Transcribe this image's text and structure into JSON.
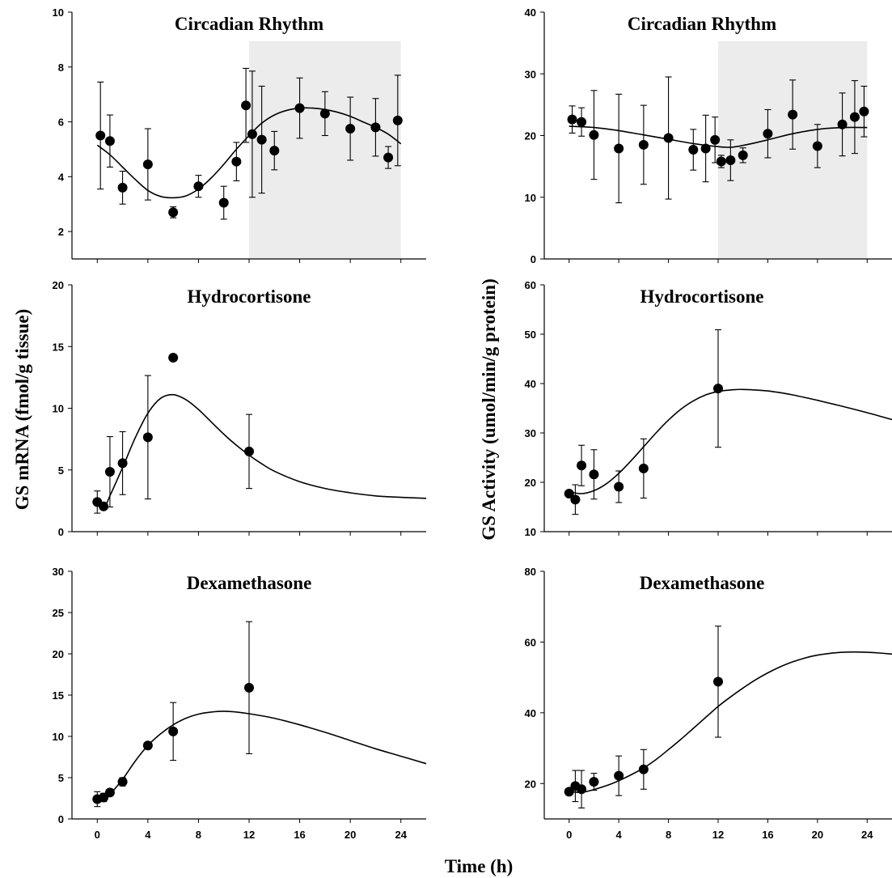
{
  "figure": {
    "ylabel_left": "GS mRNA (fmol/g tissue)",
    "ylabel_right": "GS Activity (umol/min/g protein)",
    "xlabel": "Time (h)",
    "x_ticks": [
      "0",
      "4",
      "8",
      "12",
      "16",
      "20",
      "24"
    ]
  },
  "chart_data": [
    {
      "type": "scatter",
      "title": "Circadian Rhythm",
      "ylim": [
        1,
        10
      ],
      "yticks": [
        2,
        4,
        6,
        8,
        10
      ],
      "xlim": [
        -2,
        26
      ],
      "dark_period": [
        12,
        24
      ],
      "points": [
        {
          "x": 0.25,
          "y": 5.5,
          "err": 1.95
        },
        {
          "x": 1,
          "y": 5.3,
          "err": 0.95
        },
        {
          "x": 2,
          "y": 3.6,
          "err": 0.6
        },
        {
          "x": 4,
          "y": 4.45,
          "err": 1.3
        },
        {
          "x": 6,
          "y": 2.7,
          "err": 0.2
        },
        {
          "x": 8,
          "y": 3.65,
          "err": 0.4
        },
        {
          "x": 10,
          "y": 3.05,
          "err": 0.6
        },
        {
          "x": 11,
          "y": 4.55,
          "err": 0.7
        },
        {
          "x": 11.75,
          "y": 6.6,
          "err": 1.35
        },
        {
          "x": 12.25,
          "y": 5.55,
          "err": 2.3
        },
        {
          "x": 13,
          "y": 5.35,
          "err": 1.95
        },
        {
          "x": 14,
          "y": 4.95,
          "err": 0.7
        },
        {
          "x": 16,
          "y": 6.5,
          "err": 1.1
        },
        {
          "x": 18,
          "y": 6.3,
          "err": 0.8
        },
        {
          "x": 20,
          "y": 5.75,
          "err": 1.15
        },
        {
          "x": 22,
          "y": 5.8,
          "err": 1.05
        },
        {
          "x": 23,
          "y": 4.7,
          "err": 0.4
        },
        {
          "x": 23.75,
          "y": 6.05,
          "err": 1.65
        }
      ],
      "fit": [
        [
          0,
          5.15
        ],
        [
          1,
          4.8
        ],
        [
          2,
          4.35
        ],
        [
          3,
          3.9
        ],
        [
          4,
          3.5
        ],
        [
          5,
          3.28
        ],
        [
          6,
          3.23
        ],
        [
          7,
          3.3
        ],
        [
          8,
          3.55
        ],
        [
          9,
          3.95
        ],
        [
          10,
          4.45
        ],
        [
          11,
          5.0
        ],
        [
          12,
          5.5
        ],
        [
          13,
          5.95
        ],
        [
          14,
          6.25
        ],
        [
          15,
          6.42
        ],
        [
          16,
          6.5
        ],
        [
          17,
          6.5
        ],
        [
          18,
          6.45
        ],
        [
          19,
          6.35
        ],
        [
          20,
          6.2
        ],
        [
          21,
          6.0
        ],
        [
          22,
          5.8
        ],
        [
          23,
          5.55
        ],
        [
          24,
          5.2
        ]
      ]
    },
    {
      "type": "scatter",
      "title": "Circadian Rhythm",
      "ylim": [
        0,
        40
      ],
      "yticks": [
        0,
        10,
        20,
        30,
        40
      ],
      "xlim": [
        -2,
        26
      ],
      "dark_period": [
        12,
        24
      ],
      "points": [
        {
          "x": 0.25,
          "y": 22.6,
          "err": 2.2
        },
        {
          "x": 1,
          "y": 22.2,
          "err": 2.3
        },
        {
          "x": 2,
          "y": 20.1,
          "err": 7.2
        },
        {
          "x": 4,
          "y": 17.9,
          "err": 8.8
        },
        {
          "x": 6,
          "y": 18.5,
          "err": 6.4
        },
        {
          "x": 8,
          "y": 19.6,
          "err": 9.9
        },
        {
          "x": 10,
          "y": 17.7,
          "err": 3.3
        },
        {
          "x": 11,
          "y": 17.9,
          "err": 5.4
        },
        {
          "x": 11.75,
          "y": 19.3,
          "err": 3.7
        },
        {
          "x": 12.25,
          "y": 15.8,
          "err": 1.0
        },
        {
          "x": 13,
          "y": 16.0,
          "err": 3.3
        },
        {
          "x": 14,
          "y": 16.8,
          "err": 1.2
        },
        {
          "x": 16,
          "y": 20.3,
          "err": 3.9
        },
        {
          "x": 18,
          "y": 23.4,
          "err": 5.6
        },
        {
          "x": 20,
          "y": 18.3,
          "err": 3.5
        },
        {
          "x": 22,
          "y": 21.8,
          "err": 5.1
        },
        {
          "x": 23,
          "y": 23.0,
          "err": 5.9
        },
        {
          "x": 23.75,
          "y": 23.9,
          "err": 4.1
        }
      ],
      "fit": [
        [
          0,
          21.5
        ],
        [
          2,
          21.3
        ],
        [
          4,
          20.8
        ],
        [
          6,
          20.1
        ],
        [
          8,
          19.4
        ],
        [
          10,
          18.7
        ],
        [
          12,
          18.2
        ],
        [
          13,
          18.1
        ],
        [
          14,
          18.4
        ],
        [
          16,
          19.3
        ],
        [
          18,
          20.3
        ],
        [
          20,
          21.0
        ],
        [
          22,
          21.3
        ],
        [
          24,
          21.3
        ]
      ]
    },
    {
      "type": "scatter",
      "title": "Hydrocortisone",
      "ylim": [
        0,
        20
      ],
      "yticks": [
        0,
        5,
        10,
        15,
        20
      ],
      "xlim": [
        -2,
        26
      ],
      "points": [
        {
          "x": 0,
          "y": 2.4,
          "err": 0.9
        },
        {
          "x": 0.5,
          "y": 2.05,
          "err": 0
        },
        {
          "x": 1,
          "y": 4.85,
          "err": 2.85
        },
        {
          "x": 2,
          "y": 5.55,
          "err": 2.55
        },
        {
          "x": 4,
          "y": 7.65,
          "err": 5.0
        },
        {
          "x": 6,
          "y": 14.1,
          "err": 0
        },
        {
          "x": 12,
          "y": 6.5,
          "err": 3.0
        }
      ],
      "fit": [
        [
          0,
          2.45
        ],
        [
          0.5,
          1.9
        ],
        [
          1,
          2.9
        ],
        [
          2,
          5.2
        ],
        [
          3,
          7.6
        ],
        [
          4,
          9.6
        ],
        [
          5,
          10.8
        ],
        [
          6,
          11.1
        ],
        [
          7,
          10.7
        ],
        [
          8,
          9.9
        ],
        [
          9,
          8.9
        ],
        [
          10,
          7.9
        ],
        [
          11,
          7.0
        ],
        [
          12,
          6.2
        ],
        [
          13,
          5.5
        ],
        [
          14,
          4.9
        ],
        [
          16,
          4.05
        ],
        [
          18,
          3.5
        ],
        [
          20,
          3.15
        ],
        [
          22,
          2.9
        ],
        [
          24,
          2.78
        ],
        [
          26,
          2.7
        ]
      ]
    },
    {
      "type": "scatter",
      "title": "Hydrocortisone",
      "ylim": [
        10,
        60
      ],
      "yticks": [
        10,
        20,
        30,
        40,
        50,
        60
      ],
      "xlim": [
        -2,
        26
      ],
      "points": [
        {
          "x": 0,
          "y": 17.7,
          "err": 0
        },
        {
          "x": 0.5,
          "y": 16.5,
          "err": 3.0
        },
        {
          "x": 1,
          "y": 23.4,
          "err": 4.1
        },
        {
          "x": 2,
          "y": 21.6,
          "err": 5.0
        },
        {
          "x": 4,
          "y": 19.1,
          "err": 3.2
        },
        {
          "x": 6,
          "y": 22.8,
          "err": 6.0
        },
        {
          "x": 12,
          "y": 39.0,
          "err": 11.9
        }
      ],
      "fit": [
        [
          0,
          18.1
        ],
        [
          1,
          17.7
        ],
        [
          2,
          18.3
        ],
        [
          3,
          19.7
        ],
        [
          4,
          21.8
        ],
        [
          5,
          24.4
        ],
        [
          6,
          27.2
        ],
        [
          7,
          30.0
        ],
        [
          8,
          32.6
        ],
        [
          9,
          34.8
        ],
        [
          10,
          36.5
        ],
        [
          11,
          37.7
        ],
        [
          12,
          38.4
        ],
        [
          13,
          38.7
        ],
        [
          14,
          38.8
        ],
        [
          16,
          38.5
        ],
        [
          18,
          37.7
        ],
        [
          20,
          36.6
        ],
        [
          22,
          35.4
        ],
        [
          24,
          34.1
        ],
        [
          26,
          32.7
        ]
      ]
    },
    {
      "type": "scatter",
      "title": "Dexamethasone",
      "ylim": [
        0,
        30
      ],
      "yticks": [
        0,
        5,
        10,
        15,
        20,
        25,
        30
      ],
      "xlim": [
        -2,
        26
      ],
      "points": [
        {
          "x": 0,
          "y": 2.4,
          "err": 0.9
        },
        {
          "x": 0.5,
          "y": 2.6,
          "err": 0.5
        },
        {
          "x": 1,
          "y": 3.2,
          "err": 0.4
        },
        {
          "x": 2,
          "y": 4.5,
          "err": 0.5
        },
        {
          "x": 4,
          "y": 8.9,
          "err": 0.4
        },
        {
          "x": 6,
          "y": 10.6,
          "err": 3.5
        },
        {
          "x": 12,
          "y": 15.9,
          "err": 8.0
        }
      ],
      "fit": [
        [
          0,
          2.4
        ],
        [
          0.5,
          2.5
        ],
        [
          1,
          3.0
        ],
        [
          2,
          4.8
        ],
        [
          3,
          7.0
        ],
        [
          4,
          8.9
        ],
        [
          5,
          10.3
        ],
        [
          6,
          11.4
        ],
        [
          7,
          12.2
        ],
        [
          8,
          12.7
        ],
        [
          9,
          12.95
        ],
        [
          10,
          13.05
        ],
        [
          11,
          12.95
        ],
        [
          12,
          12.75
        ],
        [
          14,
          12.2
        ],
        [
          16,
          11.4
        ],
        [
          18,
          10.5
        ],
        [
          20,
          9.5
        ],
        [
          22,
          8.5
        ],
        [
          24,
          7.6
        ],
        [
          26,
          6.7
        ]
      ]
    },
    {
      "type": "scatter",
      "title": "Dexamethasone",
      "ylim": [
        10,
        80
      ],
      "yticks": [
        20,
        40,
        60,
        80
      ],
      "xlim": [
        -2,
        26
      ],
      "points": [
        {
          "x": 0,
          "y": 17.7,
          "err": 0
        },
        {
          "x": 0.5,
          "y": 19.3,
          "err": 4.4
        },
        {
          "x": 1,
          "y": 18.4,
          "err": 5.3
        },
        {
          "x": 2,
          "y": 20.5,
          "err": 2.4
        },
        {
          "x": 4,
          "y": 22.2,
          "err": 5.6
        },
        {
          "x": 6,
          "y": 24.0,
          "err": 5.6
        },
        {
          "x": 12,
          "y": 48.8,
          "err": 15.7
        }
      ],
      "fit": [
        [
          0,
          17.8
        ],
        [
          1,
          17.5
        ],
        [
          2,
          18.3
        ],
        [
          3,
          19.4
        ],
        [
          4,
          20.8
        ],
        [
          5,
          22.5
        ],
        [
          6,
          24.4
        ],
        [
          7,
          26.8
        ],
        [
          8,
          29.6
        ],
        [
          9,
          32.5
        ],
        [
          10,
          35.6
        ],
        [
          11,
          38.7
        ],
        [
          12,
          41.8
        ],
        [
          13,
          44.5
        ],
        [
          14,
          47.0
        ],
        [
          15,
          49.3
        ],
        [
          16,
          51.3
        ],
        [
          17,
          53.0
        ],
        [
          18,
          54.4
        ],
        [
          19,
          55.5
        ],
        [
          20,
          56.3
        ],
        [
          21,
          56.8
        ],
        [
          22,
          57.1
        ],
        [
          23,
          57.2
        ],
        [
          24,
          57.1
        ],
        [
          25,
          56.9
        ],
        [
          26,
          56.6
        ]
      ]
    }
  ]
}
